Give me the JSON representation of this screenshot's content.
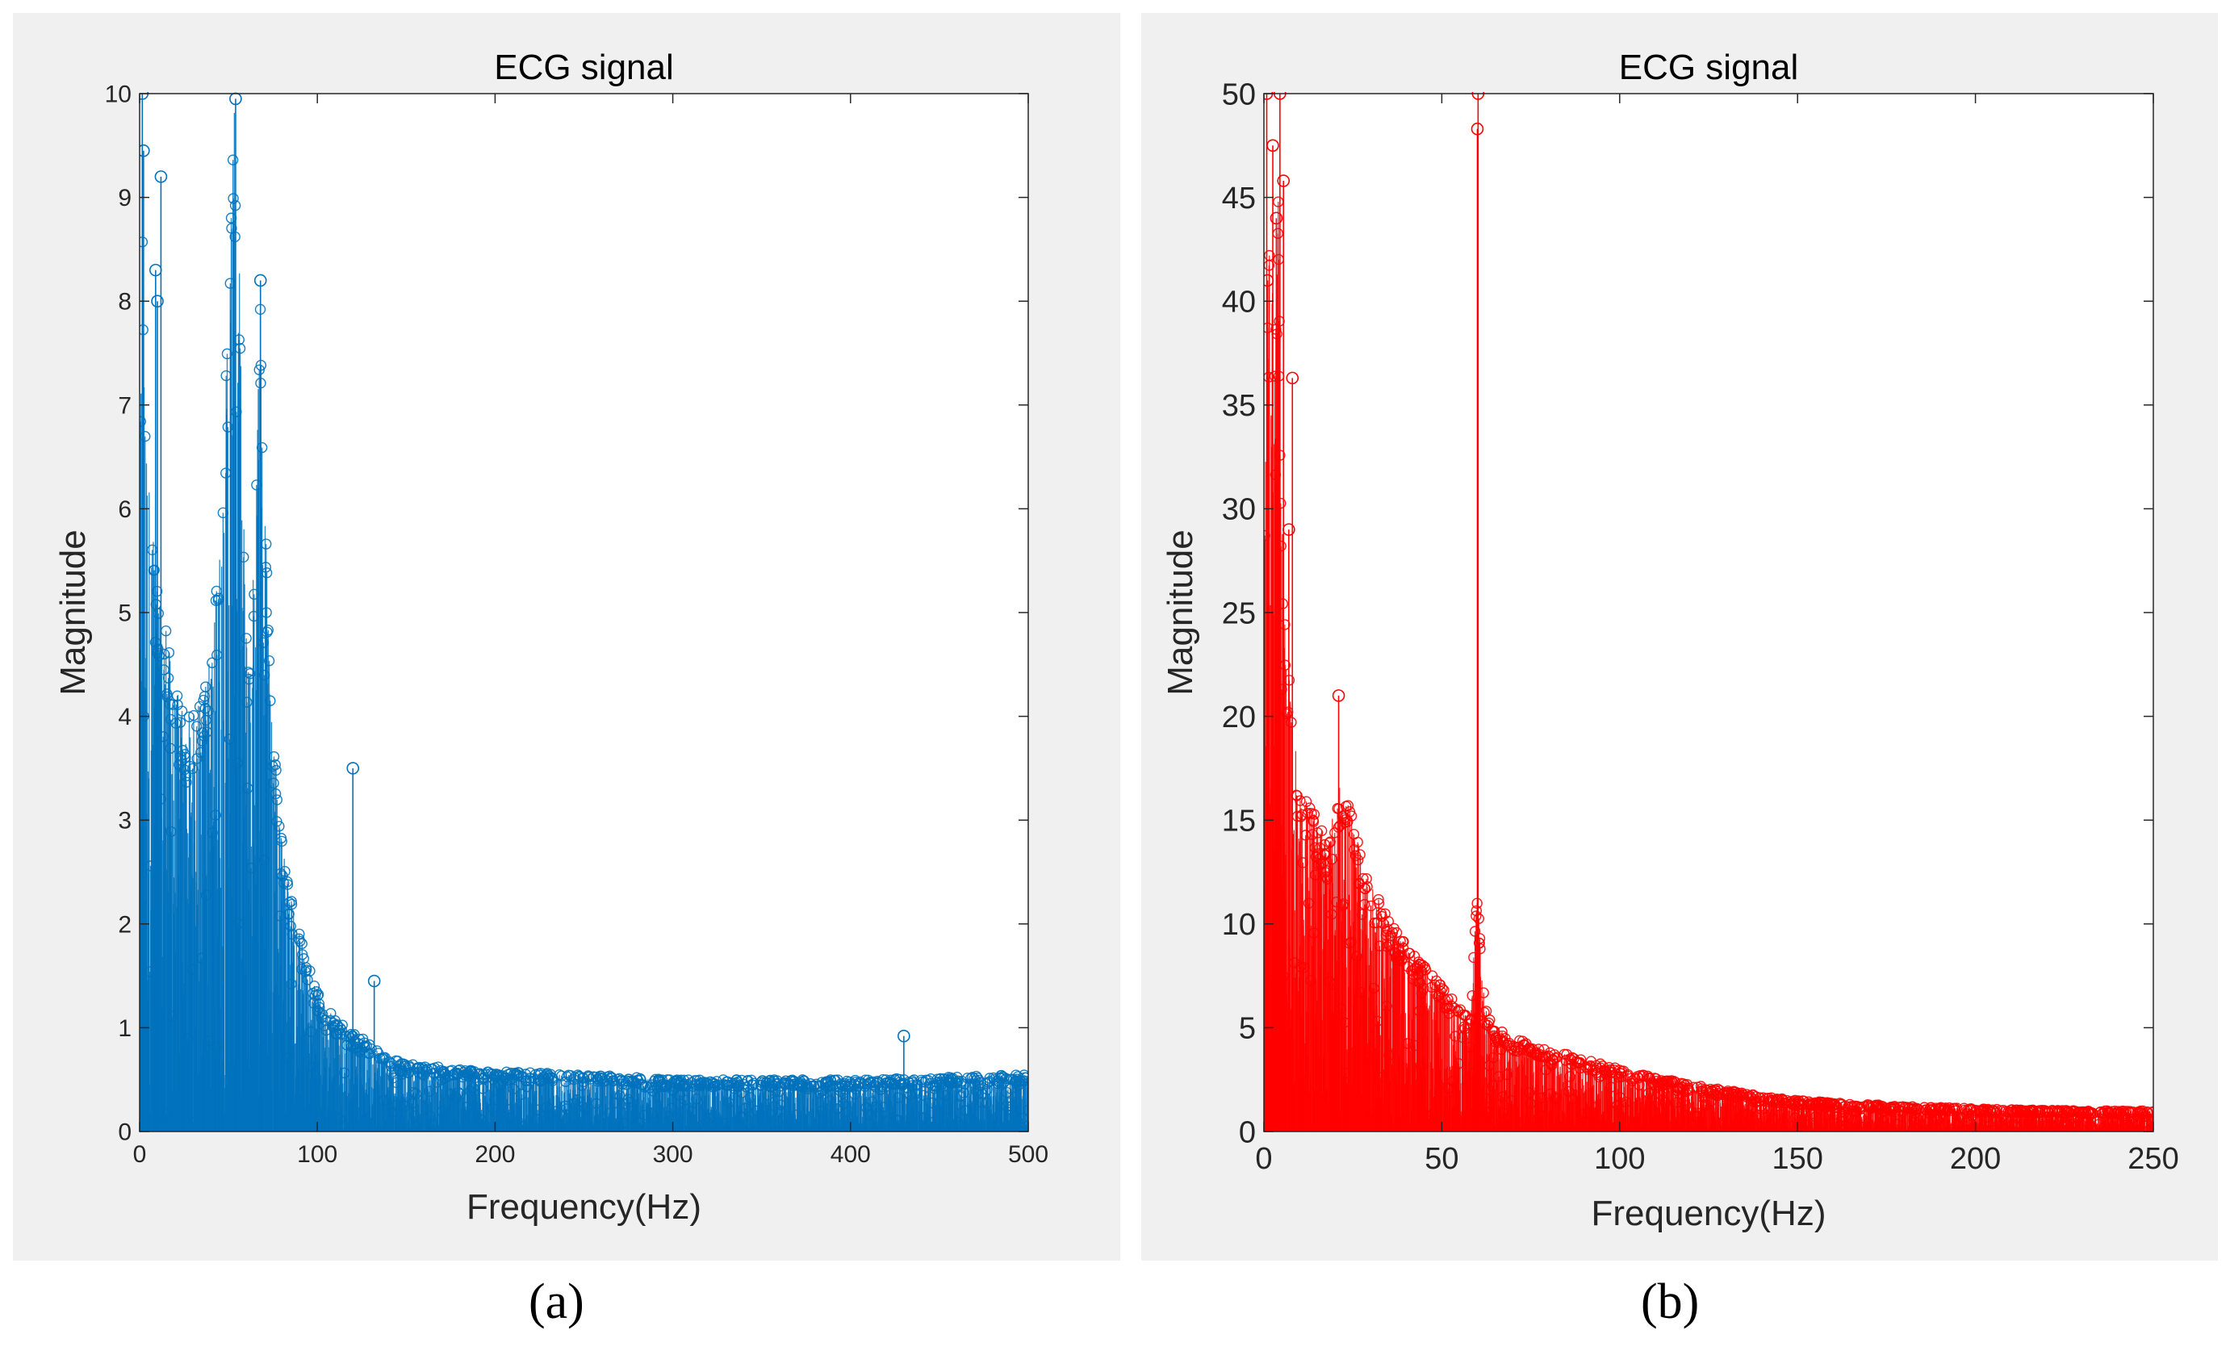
{
  "chart_data": [
    {
      "type": "stem",
      "panel": "a",
      "title": "ECG signal",
      "xlabel": "Frequency(Hz)",
      "ylabel": "Magnitude",
      "xlim": [
        0,
        500
      ],
      "ylim": [
        0,
        10
      ],
      "xticks": [
        0,
        100,
        200,
        300,
        400,
        500
      ],
      "yticks": [
        0,
        1,
        2,
        3,
        4,
        5,
        6,
        7,
        8,
        9,
        10
      ],
      "color": "#0072bd",
      "marker": "circle",
      "envelope": {
        "x": [
          0,
          1,
          2,
          3,
          5,
          8,
          10,
          12,
          15,
          18,
          22,
          26,
          30,
          34,
          38,
          42,
          45,
          48,
          50,
          52,
          53,
          54,
          55,
          56,
          58,
          60,
          62,
          64,
          66,
          68,
          70,
          72,
          75,
          78,
          82,
          86,
          90,
          95,
          100,
          110,
          120,
          130,
          140,
          150,
          170,
          200,
          250,
          300,
          350,
          400,
          450,
          500
        ],
        "y": [
          3.5,
          9.5,
          8.3,
          7.5,
          6.5,
          5.8,
          5.2,
          5.0,
          4.9,
          4.5,
          4.2,
          4.0,
          4.0,
          4.2,
          4.5,
          5.0,
          5.8,
          7.0,
          8.2,
          9.3,
          9.8,
          9.9,
          9.2,
          8.5,
          6.5,
          5.0,
          4.6,
          5.5,
          7.5,
          8.2,
          6.5,
          5.2,
          4.0,
          3.3,
          2.6,
          2.2,
          1.9,
          1.6,
          1.35,
          1.1,
          0.95,
          0.85,
          0.75,
          0.65,
          0.62,
          0.58,
          0.55,
          0.5,
          0.5,
          0.5,
          0.52,
          0.55
        ]
      },
      "tall_stems": [
        {
          "x": 1.5,
          "y": 10
        },
        {
          "x": 2.2,
          "y": 9.45
        },
        {
          "x": 12,
          "y": 9.2
        },
        {
          "x": 9,
          "y": 8.3
        },
        {
          "x": 10,
          "y": 8.0
        },
        {
          "x": 54,
          "y": 9.95
        },
        {
          "x": 68,
          "y": 8.2
        },
        {
          "x": 120,
          "y": 3.5
        },
        {
          "x": 132,
          "y": 1.45
        },
        {
          "x": 430,
          "y": 0.92
        }
      ]
    },
    {
      "type": "stem",
      "panel": "b",
      "title": "ECG signal",
      "xlabel": "Frequency(Hz)",
      "ylabel": "Magnitude",
      "xlim": [
        0,
        250
      ],
      "ylim": [
        0,
        50
      ],
      "xticks": [
        0,
        50,
        100,
        150,
        200,
        250
      ],
      "yticks": [
        0,
        5,
        10,
        15,
        20,
        25,
        30,
        35,
        40,
        45,
        50
      ],
      "color": "#ff0000",
      "marker": "circle",
      "envelope": {
        "x": [
          0,
          1,
          2,
          3,
          4,
          5,
          6,
          7,
          8,
          10,
          12,
          15,
          18,
          20,
          22,
          25,
          28,
          30,
          33,
          36,
          40,
          45,
          50,
          55,
          58,
          60,
          62,
          65,
          70,
          75,
          80,
          90,
          100,
          110,
          120,
          130,
          140,
          150,
          170,
          200,
          230,
          250
        ],
        "y": [
          30,
          40,
          45,
          38,
          46,
          30,
          25,
          22,
          20,
          17,
          16,
          15,
          14,
          16,
          17,
          15,
          13,
          12,
          11,
          10,
          9,
          8,
          7,
          6,
          5.5,
          12,
          6,
          5,
          4.5,
          4.3,
          4.0,
          3.5,
          3.0,
          2.6,
          2.3,
          2.0,
          1.7,
          1.5,
          1.3,
          1.1,
          1.0,
          1.0
        ]
      },
      "tall_stems": [
        {
          "x": 0.8,
          "y": 50
        },
        {
          "x": 2.5,
          "y": 47.5
        },
        {
          "x": 4.5,
          "y": 50
        },
        {
          "x": 5.5,
          "y": 45.8
        },
        {
          "x": 3.5,
          "y": 44
        },
        {
          "x": 1.0,
          "y": 41
        },
        {
          "x": 8,
          "y": 36.3
        },
        {
          "x": 7,
          "y": 29
        },
        {
          "x": 21,
          "y": 21
        },
        {
          "x": 60,
          "y": 48.3
        },
        {
          "x": 60.2,
          "y": 50
        }
      ]
    }
  ],
  "captions": [
    "(a)",
    "(b)"
  ]
}
